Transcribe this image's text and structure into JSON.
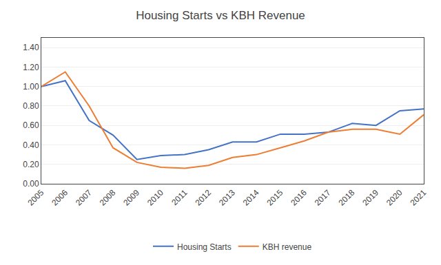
{
  "chart_data": {
    "type": "line",
    "title": "Housing Starts vs KBH Revenue",
    "x": [
      2005,
      2006,
      2007,
      2008,
      2009,
      2010,
      2011,
      2012,
      2013,
      2014,
      2015,
      2016,
      2017,
      2018,
      2019,
      2020,
      2021
    ],
    "series": [
      {
        "name": "Housing Starts",
        "color": "#4472C4",
        "values": [
          1.0,
          1.06,
          0.65,
          0.5,
          0.25,
          0.29,
          0.3,
          0.35,
          0.43,
          0.43,
          0.51,
          0.51,
          0.53,
          0.62,
          0.6,
          0.75,
          0.77
        ]
      },
      {
        "name": "KBH revenue",
        "color": "#ED7D31",
        "values": [
          1.0,
          1.15,
          0.8,
          0.37,
          0.22,
          0.17,
          0.16,
          0.19,
          0.27,
          0.3,
          0.37,
          0.44,
          0.53,
          0.56,
          0.56,
          0.51,
          0.71
        ]
      }
    ],
    "xlim": [
      2005,
      2021
    ],
    "xticks": [
      2005,
      2006,
      2007,
      2008,
      2009,
      2010,
      2011,
      2012,
      2013,
      2014,
      2015,
      2016,
      2017,
      2018,
      2019,
      2020,
      2021
    ],
    "ylim": [
      0.0,
      1.5
    ],
    "yticks": [
      {
        "value": 0.0,
        "label": "0.00"
      },
      {
        "value": 0.2,
        "label": "0.20"
      },
      {
        "value": 0.4,
        "label": "0.40"
      },
      {
        "value": 0.6,
        "label": "0.60"
      },
      {
        "value": 0.8,
        "label": "0.80"
      },
      {
        "value": 1.0,
        "label": "1.00"
      },
      {
        "value": 1.2,
        "label": "1.20"
      },
      {
        "value": 1.4,
        "label": "1.40"
      }
    ],
    "grid": "y",
    "legend": "bottom"
  }
}
